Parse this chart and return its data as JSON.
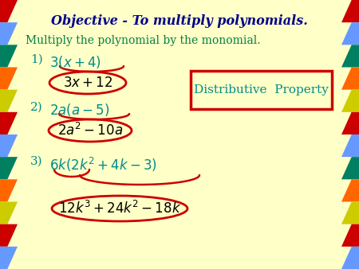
{
  "bg_color": "#FFFFC8",
  "title": "Objective - To multiply polynomials.",
  "title_color": "#00008B",
  "subtitle": "Multiply the polynomial by the monomial.",
  "subtitle_color": "#008040",
  "item_color": "#008B8B",
  "answer_color": "#000000",
  "oval_color": "#CC0000",
  "box_color": "#CC0000",
  "dist_prop_text": "Distributive  Property",
  "dist_prop_color": "#008B8B",
  "left_colors": [
    "#CC0000",
    "#6699FF",
    "#008060",
    "#FF6600",
    "#CCCC00",
    "#CC0000",
    "#6699FF",
    "#008060",
    "#FF6600",
    "#CCCC00",
    "#CC0000",
    "#6699FF"
  ],
  "right_colors": [
    "#CC0000",
    "#6699FF",
    "#008060",
    "#FF6600",
    "#CCCC00",
    "#CC0000",
    "#6699FF",
    "#008060",
    "#FF6600",
    "#CCCC00",
    "#CC0000",
    "#6699FF"
  ]
}
